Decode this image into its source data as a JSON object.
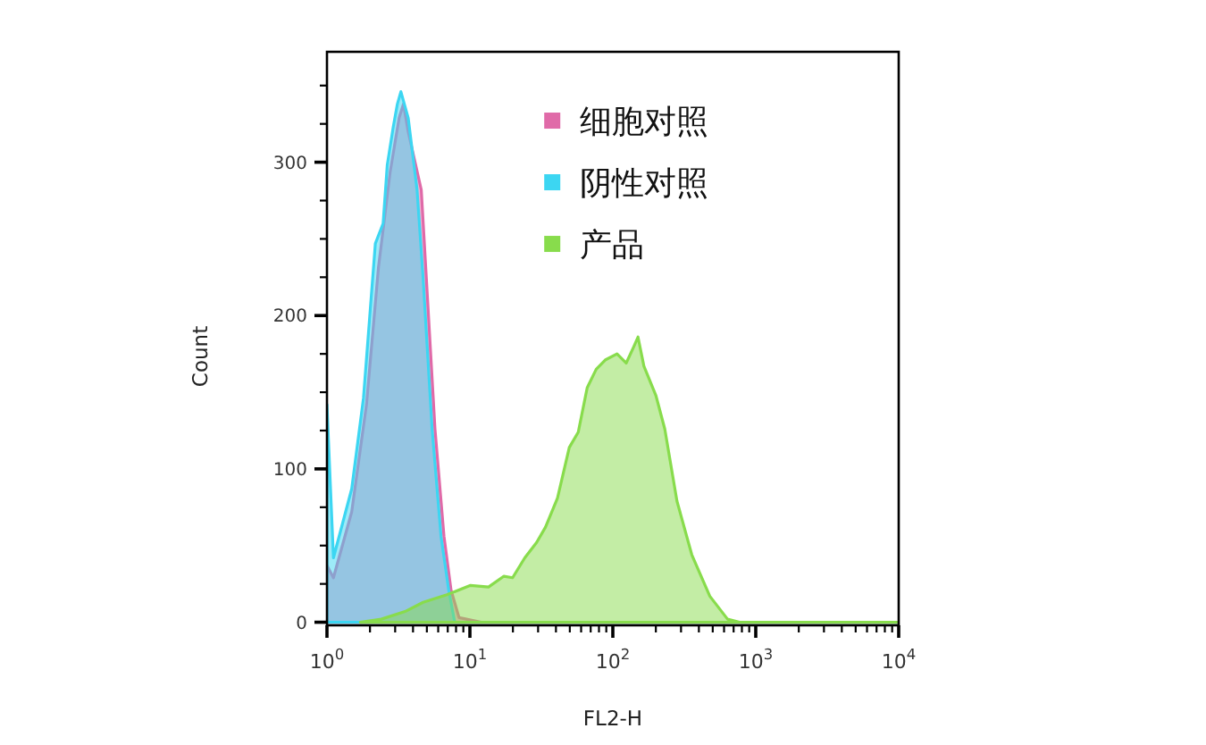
{
  "chart_data": {
    "type": "area",
    "xlabel": "FL2-H",
    "ylabel": "Count",
    "log": "x",
    "xlim": [
      1,
      10000
    ],
    "ylim": [
      -2,
      372
    ],
    "xticks": [
      {
        "value": 1,
        "label": "10$^{0}$"
      },
      {
        "value": 2,
        "label": null
      },
      {
        "value": 3,
        "label": null
      },
      {
        "value": 4,
        "label": null
      },
      {
        "value": 5,
        "label": null
      },
      {
        "value": 6,
        "label": null
      },
      {
        "value": 7,
        "label": null
      },
      {
        "value": 8,
        "label": null
      },
      {
        "value": 9,
        "label": null
      },
      {
        "value": 10,
        "label": "10$^{1}$"
      },
      {
        "value": 20,
        "label": null
      },
      {
        "value": 30,
        "label": null
      },
      {
        "value": 40,
        "label": null
      },
      {
        "value": 50,
        "label": null
      },
      {
        "value": 60,
        "label": null
      },
      {
        "value": 70,
        "label": null
      },
      {
        "value": 80,
        "label": null
      },
      {
        "value": 90,
        "label": null
      },
      {
        "value": 100,
        "label": "10$^{2}$"
      },
      {
        "value": 200,
        "label": null
      },
      {
        "value": 300,
        "label": null
      },
      {
        "value": 400,
        "label": null
      },
      {
        "value": 500,
        "label": null
      },
      {
        "value": 600,
        "label": null
      },
      {
        "value": 700,
        "label": null
      },
      {
        "value": 800,
        "label": null
      },
      {
        "value": 900,
        "label": null
      },
      {
        "value": 1000,
        "label": "10$^{3}$"
      },
      {
        "value": 2000,
        "label": null
      },
      {
        "value": 3000,
        "label": null
      },
      {
        "value": 4000,
        "label": null
      },
      {
        "value": 5000,
        "label": null
      },
      {
        "value": 6000,
        "label": null
      },
      {
        "value": 7000,
        "label": null
      },
      {
        "value": 8000,
        "label": null
      },
      {
        "value": 9000,
        "label": null
      },
      {
        "value": 10000,
        "label": "10$^{4}$"
      }
    ],
    "yticks": [
      0,
      {
        "value": 25,
        "label": null
      },
      {
        "value": 50,
        "label": null
      },
      {
        "value": 75,
        "label": null
      },
      100,
      {
        "value": 125,
        "label": null
      },
      {
        "value": 150,
        "label": null
      },
      {
        "value": 175,
        "label": null
      },
      200,
      {
        "value": 225,
        "label": null
      },
      {
        "value": 250,
        "label": null
      },
      {
        "value": 275,
        "label": null
      },
      300,
      {
        "value": 325,
        "label": null
      },
      {
        "value": 350,
        "label": null
      }
    ],
    "grid": false,
    "legend": "top",
    "series": [
      {
        "name": "细胞对照",
        "color": "#e06aa8",
        "x": [
          1,
          1.11,
          1.49,
          1.89,
          2.29,
          2.77,
          3.2,
          3.43,
          3.7,
          4.57,
          5.7,
          6.59,
          7.38,
          8.4,
          12,
          10000
        ],
        "values": [
          37,
          29,
          72,
          142,
          231,
          294,
          329,
          338,
          320,
          282,
          126,
          56,
          21,
          3,
          0,
          0
        ]
      },
      {
        "name": "阴性对照",
        "color": "#3cd6f2",
        "x": [
          1,
          1.11,
          1.49,
          1.8,
          2.18,
          2.47,
          2.64,
          2.91,
          3.11,
          3.29,
          3.7,
          4.27,
          4.71,
          5.44,
          6.28,
          7.11,
          7.83,
          10000
        ],
        "values": [
          142,
          42,
          87,
          146,
          247,
          260,
          298,
          323,
          338,
          346,
          329,
          282,
          224,
          126,
          56,
          21,
          0,
          0
        ]
      },
      {
        "name": "产品",
        "color": "#88dc4c",
        "x": [
          1.71,
          2.4,
          3.52,
          4.71,
          6.91,
          10.1,
          13.5,
          17.3,
          19.9,
          24.2,
          29.3,
          33.8,
          41,
          49.6,
          57.3,
          66.2,
          76.5,
          88.4,
          107,
          124,
          139,
          150,
          165,
          200,
          231,
          281,
          357,
          477,
          635,
          769,
          10000
        ],
        "values": [
          0,
          2,
          7,
          13,
          18,
          24,
          23,
          30,
          29,
          42,
          52,
          62,
          81,
          114,
          124,
          153,
          165,
          171,
          175,
          169,
          179,
          186,
          167,
          148,
          126,
          79,
          44,
          17,
          2,
          0,
          0
        ]
      }
    ]
  }
}
